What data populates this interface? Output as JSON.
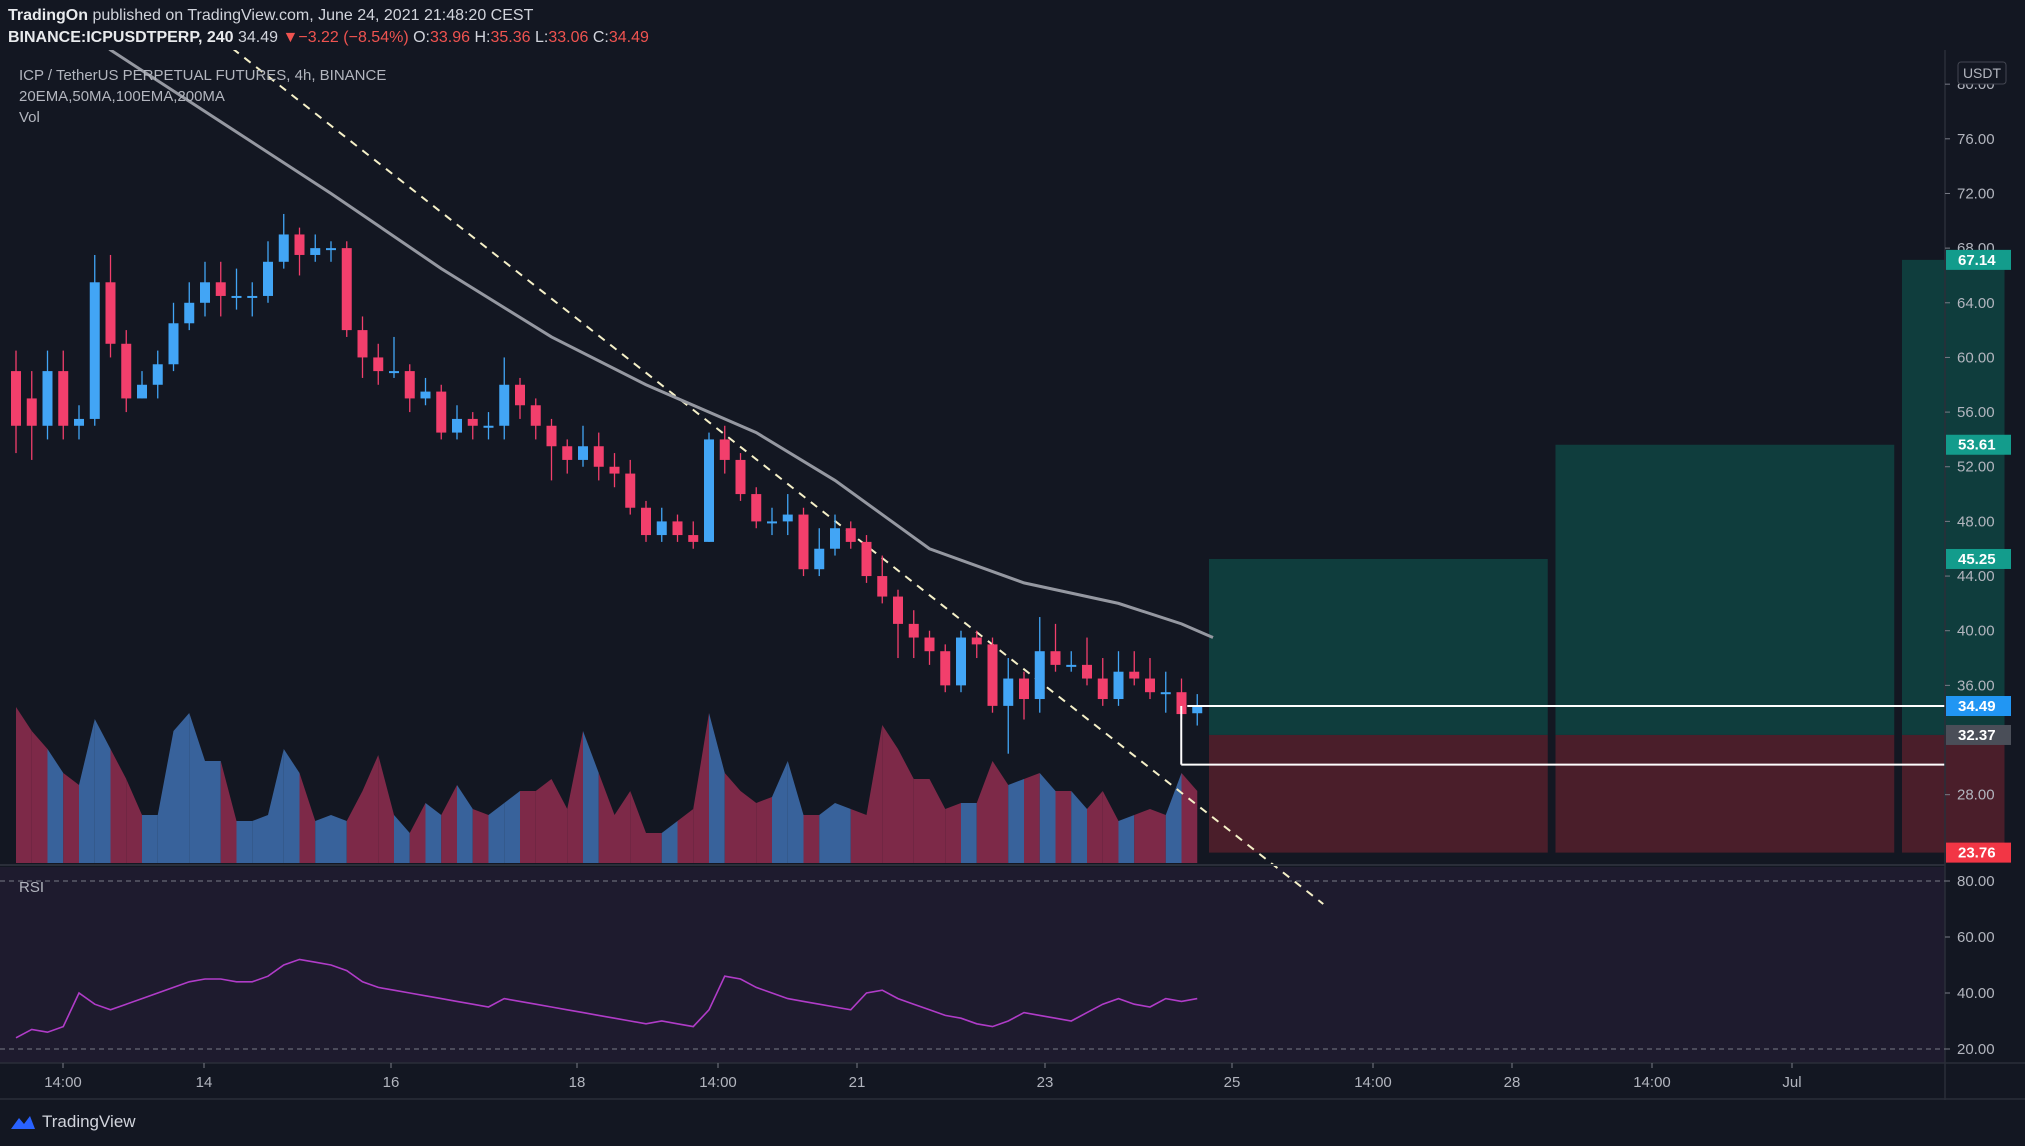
{
  "header": {
    "publisher": "TradingOn",
    "published_text": "published on TradingView.com, June 24, 2021 21:48:20 CEST",
    "symbol": "BINANCE:ICPUSDTPERP, 240",
    "last_price": "34.49",
    "change_arrow": "▼",
    "change": "−3.22 (−8.54%)",
    "open_label": "O:",
    "open": "33.96",
    "high_label": "H:",
    "high": "35.36",
    "low_label": "L:",
    "low": "33.06",
    "close_label": "C:",
    "close": "34.49"
  },
  "legend": {
    "title": "ICP / TetherUS PERPETUAL FUTURES, 4h, BINANCE",
    "indicators": "20EMA,50MA,100EMA,200MA",
    "volume": "Vol",
    "rsi": "RSI"
  },
  "footer": {
    "brand": "TradingView",
    "logo_icon": "tradingview-logo-icon"
  },
  "colors": {
    "background": "#131722",
    "up": "#42a5f5",
    "down": "#f23f6c",
    "ma": "#9598a1",
    "trendline": "#f5f0c8",
    "rsi": "#b03cc8",
    "profit_zone": "#0f3d3d",
    "loss_zone": "#4a1e2a",
    "target_label": "#139c8c",
    "stop_label": "#f23645",
    "price_label": "#2196f3"
  },
  "chart_data": {
    "type": "candlestick",
    "title": "ICP / TetherUS PERPETUAL FUTURES, 4h, BINANCE",
    "price_axis_unit": "USDT",
    "price_ticks": [
      "80.00",
      "76.00",
      "72.00",
      "68.00",
      "64.00",
      "60.00",
      "56.00",
      "52.00",
      "48.00",
      "44.00",
      "40.00",
      "36.00",
      "28.00"
    ],
    "price_range": [
      23.0,
      82.5
    ],
    "x_ticks": [
      "14:00",
      "14",
      "16",
      "18",
      "14:00",
      "21",
      "23",
      "25",
      "14:00",
      "28",
      "14:00",
      "Jul"
    ],
    "candles": [
      [
        59.0,
        55.0,
        60.5,
        53.0
      ],
      [
        57.0,
        55.0,
        59.0,
        52.5
      ],
      [
        55.0,
        59.0,
        60.5,
        54.0
      ],
      [
        59.0,
        55.0,
        60.5,
        54.0
      ],
      [
        55.0,
        55.5,
        56.5,
        54.0
      ],
      [
        55.5,
        65.5,
        67.5,
        55.0
      ],
      [
        65.5,
        61.0,
        67.5,
        60.0
      ],
      [
        61.0,
        57.0,
        62.0,
        56.0
      ],
      [
        57.0,
        58.0,
        59.0,
        57.0
      ],
      [
        58.0,
        59.5,
        60.5,
        57.0
      ],
      [
        59.5,
        62.5,
        64.0,
        59.0
      ],
      [
        62.5,
        64.0,
        65.5,
        62.0
      ],
      [
        64.0,
        65.5,
        67.0,
        63.0
      ],
      [
        65.5,
        64.5,
        67.0,
        63.0
      ],
      [
        64.5,
        64.5,
        66.5,
        63.5
      ],
      [
        64.5,
        64.5,
        65.5,
        63.0
      ],
      [
        64.5,
        67.0,
        68.5,
        64.0
      ],
      [
        67.0,
        69.0,
        70.5,
        66.5
      ],
      [
        69.0,
        67.5,
        69.5,
        66.0
      ],
      [
        67.5,
        68.0,
        69.0,
        67.0
      ],
      [
        68.0,
        68.0,
        68.5,
        67.0
      ],
      [
        68.0,
        62.0,
        68.5,
        61.5
      ],
      [
        62.0,
        60.0,
        63.0,
        58.5
      ],
      [
        60.0,
        59.0,
        61.0,
        58.0
      ],
      [
        59.0,
        59.0,
        61.5,
        58.5
      ],
      [
        59.0,
        57.0,
        59.5,
        56.0
      ],
      [
        57.0,
        57.5,
        58.5,
        56.5
      ],
      [
        57.5,
        54.5,
        58.0,
        54.0
      ],
      [
        54.5,
        55.5,
        56.5,
        54.0
      ],
      [
        55.5,
        55.0,
        56.0,
        54.0
      ],
      [
        55.0,
        55.0,
        56.0,
        54.0
      ],
      [
        55.0,
        58.0,
        60.0,
        54.0
      ],
      [
        58.0,
        56.5,
        58.5,
        55.5
      ],
      [
        56.5,
        55.0,
        57.0,
        54.0
      ],
      [
        55.0,
        53.5,
        55.5,
        51.0
      ],
      [
        53.5,
        52.5,
        54.0,
        51.5
      ],
      [
        52.5,
        53.5,
        55.0,
        52.0
      ],
      [
        53.5,
        52.0,
        54.5,
        51.0
      ],
      [
        52.0,
        51.5,
        53.0,
        50.5
      ],
      [
        51.5,
        49.0,
        52.5,
        48.5
      ],
      [
        49.0,
        47.0,
        49.5,
        46.5
      ],
      [
        47.0,
        48.0,
        49.0,
        46.5
      ],
      [
        48.0,
        47.0,
        48.5,
        46.5
      ],
      [
        47.0,
        46.5,
        48.0,
        46.0
      ],
      [
        46.5,
        54.0,
        54.5,
        46.5
      ],
      [
        54.0,
        52.5,
        55.0,
        51.5
      ],
      [
        52.5,
        50.0,
        53.0,
        49.5
      ],
      [
        50.0,
        48.0,
        50.5,
        47.5
      ],
      [
        48.0,
        48.0,
        49.0,
        47.0
      ],
      [
        48.0,
        48.5,
        50.0,
        47.0
      ],
      [
        48.5,
        44.5,
        49.0,
        44.0
      ],
      [
        44.5,
        46.0,
        47.5,
        44.0
      ],
      [
        46.0,
        47.5,
        48.5,
        45.5
      ],
      [
        47.5,
        46.5,
        48.0,
        46.0
      ],
      [
        46.5,
        44.0,
        47.0,
        43.5
      ],
      [
        44.0,
        42.5,
        45.5,
        42.0
      ],
      [
        42.5,
        40.5,
        43.0,
        38.0
      ],
      [
        40.5,
        39.5,
        41.5,
        38.0
      ],
      [
        39.5,
        38.5,
        40.0,
        37.5
      ],
      [
        38.5,
        36.0,
        39.0,
        35.5
      ],
      [
        36.0,
        39.5,
        40.0,
        35.5
      ],
      [
        39.5,
        39.0,
        40.0,
        38.0
      ],
      [
        39.0,
        34.5,
        39.5,
        34.0
      ],
      [
        34.5,
        36.5,
        38.0,
        31.0
      ],
      [
        36.5,
        35.0,
        37.0,
        33.5
      ],
      [
        35.0,
        38.5,
        41.0,
        34.0
      ],
      [
        38.5,
        37.5,
        40.5,
        37.0
      ],
      [
        37.5,
        37.5,
        38.5,
        37.0
      ],
      [
        37.5,
        36.5,
        39.5,
        36.0
      ],
      [
        36.5,
        35.0,
        38.0,
        34.5
      ],
      [
        35.0,
        37.0,
        38.5,
        34.5
      ],
      [
        37.0,
        36.5,
        38.5,
        36.0
      ],
      [
        36.5,
        35.5,
        38.0,
        35.0
      ],
      [
        35.5,
        35.5,
        37.0,
        34.0
      ],
      [
        35.5,
        33.9,
        36.5,
        33.5
      ],
      [
        33.96,
        34.49,
        35.36,
        33.06
      ]
    ],
    "volume": [
      52,
      44,
      38,
      30,
      26,
      48,
      38,
      28,
      16,
      16,
      44,
      50,
      34,
      34,
      14,
      14,
      16,
      38,
      30,
      14,
      16,
      14,
      24,
      36,
      16,
      10,
      20,
      16,
      26,
      18,
      16,
      20,
      24,
      24,
      28,
      18,
      44,
      30,
      16,
      24,
      10,
      10,
      14,
      18,
      50,
      30,
      24,
      20,
      22,
      34,
      16,
      16,
      20,
      18,
      16,
      46,
      38,
      28,
      28,
      18,
      20,
      20,
      34,
      26,
      28,
      30,
      24,
      24,
      18,
      24,
      14,
      16,
      18,
      16,
      30,
      24
    ],
    "ma50": [
      [
        1,
        88.0
      ],
      [
        6,
        82.5
      ],
      [
        12,
        78.0
      ],
      [
        20,
        72.0
      ],
      [
        27,
        66.5
      ],
      [
        34,
        61.5
      ],
      [
        40,
        58.0
      ],
      [
        47,
        54.5
      ],
      [
        52,
        51.0
      ],
      [
        58,
        46.0
      ],
      [
        64,
        43.5
      ],
      [
        70,
        42.0
      ],
      [
        74,
        40.5
      ],
      [
        76,
        39.5
      ]
    ],
    "trendline": {
      "from": [
        10,
        86.0
      ],
      "to": [
        83,
        20.0
      ]
    },
    "long_positions": [
      {
        "entry": 32.37,
        "target": 45.25,
        "stop": 23.76,
        "start": 76,
        "end": 97
      },
      {
        "entry": 32.37,
        "target": 53.61,
        "stop": 23.76,
        "start": 98,
        "end": 119
      },
      {
        "entry": 32.37,
        "target": 67.14,
        "stop": 23.76,
        "start": 120,
        "end": 126
      }
    ],
    "horizontal_lines": [
      34.49,
      30.2
    ],
    "price_labels": [
      {
        "value": 67.14,
        "text": "67.14",
        "color": "#139c8c"
      },
      {
        "value": 53.61,
        "text": "53.61",
        "color": "#139c8c"
      },
      {
        "value": 45.25,
        "text": "45.25",
        "color": "#139c8c"
      },
      {
        "value": 34.49,
        "text": "34.49",
        "color": "#2196f3"
      },
      {
        "value": 32.37,
        "text": "32.37",
        "color": "#4a4e58"
      },
      {
        "value": 23.76,
        "text": "23.76",
        "color": "#f23645"
      }
    ],
    "rsi": {
      "ticks": [
        "80.00",
        "60.00",
        "40.00",
        "20.00"
      ],
      "range": [
        15,
        85
      ],
      "bands": [
        80,
        20
      ],
      "values": [
        24,
        27,
        26,
        28,
        40,
        36,
        34,
        36,
        38,
        40,
        42,
        44,
        45,
        45,
        44,
        44,
        46,
        50,
        52,
        51,
        50,
        48,
        44,
        42,
        41,
        40,
        39,
        38,
        37,
        36,
        35,
        38,
        37,
        36,
        35,
        34,
        33,
        32,
        31,
        30,
        29,
        30,
        29,
        28,
        34,
        46,
        45,
        42,
        40,
        38,
        37,
        36,
        35,
        34,
        40,
        41,
        38,
        36,
        34,
        32,
        31,
        29,
        28,
        30,
        33,
        32,
        31,
        30,
        33,
        36,
        38,
        36,
        35,
        38,
        37,
        38
      ]
    }
  }
}
